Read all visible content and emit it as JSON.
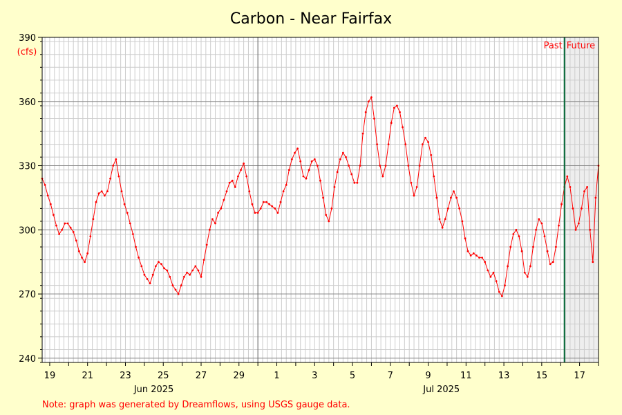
{
  "chart_data": {
    "type": "line",
    "title": "Carbon - Near Fairfax",
    "ylabel": "(cfs)",
    "xlabel": "",
    "ylim": [
      238,
      390
    ],
    "yticks": [
      240,
      270,
      300,
      330,
      360,
      390
    ],
    "xlim_days": [
      18.6,
      48.0
    ],
    "day_ticks": [
      {
        "day": 19,
        "label": "19"
      },
      {
        "day": 21,
        "label": "21"
      },
      {
        "day": 23,
        "label": "23"
      },
      {
        "day": 25,
        "label": "25"
      },
      {
        "day": 27,
        "label": "27"
      },
      {
        "day": 29,
        "label": "29"
      },
      {
        "day": 31,
        "label": "1"
      },
      {
        "day": 33,
        "label": "3"
      },
      {
        "day": 35,
        "label": "5"
      },
      {
        "day": 37,
        "label": "7"
      },
      {
        "day": 39,
        "label": "9"
      },
      {
        "day": 41,
        "label": "11"
      },
      {
        "day": 43,
        "label": "13"
      },
      {
        "day": 45,
        "label": "15"
      },
      {
        "day": 47,
        "label": "17"
      }
    ],
    "month_labels": [
      {
        "day": 24.5,
        "label": "Jun 2025"
      },
      {
        "day": 39.7,
        "label": "Jul 2025"
      }
    ],
    "month_boundary_day": 30.0,
    "now_day": 46.2,
    "past_label": "Past",
    "future_label": "Future",
    "grid": true,
    "line_color": "#ff0000",
    "series": [
      {
        "points": [
          [
            18.6,
            324
          ],
          [
            18.75,
            321
          ],
          [
            18.9,
            316
          ],
          [
            19.05,
            312
          ],
          [
            19.2,
            307
          ],
          [
            19.35,
            302
          ],
          [
            19.5,
            298
          ],
          [
            19.65,
            300
          ],
          [
            19.8,
            303
          ],
          [
            19.95,
            303
          ],
          [
            20.1,
            301
          ],
          [
            20.25,
            299
          ],
          [
            20.4,
            295
          ],
          [
            20.55,
            290
          ],
          [
            20.7,
            287
          ],
          [
            20.85,
            285
          ],
          [
            21.0,
            289
          ],
          [
            21.15,
            297
          ],
          [
            21.3,
            305
          ],
          [
            21.45,
            313
          ],
          [
            21.6,
            317
          ],
          [
            21.75,
            318
          ],
          [
            21.9,
            316
          ],
          [
            22.05,
            318
          ],
          [
            22.2,
            324
          ],
          [
            22.35,
            330
          ],
          [
            22.5,
            333
          ],
          [
            22.65,
            325
          ],
          [
            22.8,
            318
          ],
          [
            22.95,
            312
          ],
          [
            23.1,
            308
          ],
          [
            23.25,
            303
          ],
          [
            23.4,
            298
          ],
          [
            23.55,
            292
          ],
          [
            23.7,
            287
          ],
          [
            23.85,
            283
          ],
          [
            24.0,
            279
          ],
          [
            24.15,
            277
          ],
          [
            24.3,
            275
          ],
          [
            24.45,
            279
          ],
          [
            24.6,
            283
          ],
          [
            24.75,
            285
          ],
          [
            24.9,
            284
          ],
          [
            25.05,
            282
          ],
          [
            25.2,
            281
          ],
          [
            25.35,
            278
          ],
          [
            25.5,
            274
          ],
          [
            25.65,
            272
          ],
          [
            25.8,
            270
          ],
          [
            25.95,
            274
          ],
          [
            26.1,
            278
          ],
          [
            26.25,
            280
          ],
          [
            26.4,
            279
          ],
          [
            26.55,
            281
          ],
          [
            26.7,
            283
          ],
          [
            26.85,
            281
          ],
          [
            27.0,
            278
          ],
          [
            27.15,
            286
          ],
          [
            27.3,
            293
          ],
          [
            27.45,
            300
          ],
          [
            27.6,
            305
          ],
          [
            27.75,
            303
          ],
          [
            27.9,
            308
          ],
          [
            28.05,
            310
          ],
          [
            28.2,
            314
          ],
          [
            28.35,
            318
          ],
          [
            28.5,
            322
          ],
          [
            28.65,
            323
          ],
          [
            28.8,
            320
          ],
          [
            28.95,
            325
          ],
          [
            29.1,
            328
          ],
          [
            29.25,
            331
          ],
          [
            29.4,
            325
          ],
          [
            29.55,
            318
          ],
          [
            29.7,
            312
          ],
          [
            29.85,
            308
          ],
          [
            30.0,
            308
          ],
          [
            30.15,
            310
          ],
          [
            30.3,
            313
          ],
          [
            30.45,
            313
          ],
          [
            30.6,
            312
          ],
          [
            30.75,
            311
          ],
          [
            30.9,
            310
          ],
          [
            31.05,
            308
          ],
          [
            31.2,
            313
          ],
          [
            31.35,
            318
          ],
          [
            31.5,
            321
          ],
          [
            31.65,
            328
          ],
          [
            31.8,
            333
          ],
          [
            31.95,
            336
          ],
          [
            32.1,
            338
          ],
          [
            32.25,
            332
          ],
          [
            32.4,
            325
          ],
          [
            32.55,
            324
          ],
          [
            32.7,
            328
          ],
          [
            32.85,
            332
          ],
          [
            33.0,
            333
          ],
          [
            33.15,
            330
          ],
          [
            33.3,
            323
          ],
          [
            33.45,
            315
          ],
          [
            33.6,
            307
          ],
          [
            33.75,
            304
          ],
          [
            33.9,
            310
          ],
          [
            34.05,
            320
          ],
          [
            34.2,
            327
          ],
          [
            34.35,
            333
          ],
          [
            34.5,
            336
          ],
          [
            34.65,
            334
          ],
          [
            34.8,
            330
          ],
          [
            34.95,
            326
          ],
          [
            35.1,
            322
          ],
          [
            35.25,
            322
          ],
          [
            35.4,
            330
          ],
          [
            35.55,
            345
          ],
          [
            35.7,
            355
          ],
          [
            35.85,
            360
          ],
          [
            36.0,
            362
          ],
          [
            36.15,
            352
          ],
          [
            36.3,
            340
          ],
          [
            36.45,
            330
          ],
          [
            36.6,
            325
          ],
          [
            36.75,
            330
          ],
          [
            36.9,
            340
          ],
          [
            37.05,
            350
          ],
          [
            37.2,
            357
          ],
          [
            37.35,
            358
          ],
          [
            37.5,
            355
          ],
          [
            37.65,
            348
          ],
          [
            37.8,
            340
          ],
          [
            37.95,
            330
          ],
          [
            38.1,
            322
          ],
          [
            38.25,
            316
          ],
          [
            38.4,
            320
          ],
          [
            38.55,
            330
          ],
          [
            38.7,
            340
          ],
          [
            38.85,
            343
          ],
          [
            39.0,
            341
          ],
          [
            39.15,
            335
          ],
          [
            39.3,
            325
          ],
          [
            39.45,
            315
          ],
          [
            39.6,
            305
          ],
          [
            39.75,
            301
          ],
          [
            39.9,
            305
          ],
          [
            40.05,
            310
          ],
          [
            40.2,
            315
          ],
          [
            40.35,
            318
          ],
          [
            40.5,
            315
          ],
          [
            40.65,
            310
          ],
          [
            40.8,
            304
          ],
          [
            40.95,
            296
          ],
          [
            41.1,
            290
          ],
          [
            41.25,
            288
          ],
          [
            41.4,
            289
          ],
          [
            41.55,
            288
          ],
          [
            41.7,
            287
          ],
          [
            41.85,
            287
          ],
          [
            42.0,
            285
          ],
          [
            42.15,
            281
          ],
          [
            42.3,
            278
          ],
          [
            42.45,
            280
          ],
          [
            42.6,
            276
          ],
          [
            42.75,
            271
          ],
          [
            42.9,
            269
          ],
          [
            43.05,
            274
          ],
          [
            43.2,
            283
          ],
          [
            43.35,
            292
          ],
          [
            43.5,
            298
          ],
          [
            43.65,
            300
          ],
          [
            43.8,
            297
          ],
          [
            43.95,
            290
          ],
          [
            44.1,
            280
          ],
          [
            44.25,
            278
          ],
          [
            44.4,
            283
          ],
          [
            44.55,
            292
          ],
          [
            44.7,
            300
          ],
          [
            44.85,
            305
          ],
          [
            45.0,
            303
          ],
          [
            45.15,
            297
          ],
          [
            45.3,
            290
          ],
          [
            45.45,
            284
          ],
          [
            45.6,
            285
          ],
          [
            45.75,
            292
          ],
          [
            45.9,
            302
          ],
          [
            46.05,
            312
          ],
          [
            46.2,
            320
          ],
          [
            46.35,
            325
          ],
          [
            46.5,
            320
          ],
          [
            46.65,
            310
          ],
          [
            46.8,
            300
          ],
          [
            46.95,
            303
          ],
          [
            47.1,
            310
          ],
          [
            47.25,
            318
          ],
          [
            47.4,
            320
          ],
          [
            47.55,
            300
          ],
          [
            47.7,
            285
          ],
          [
            47.85,
            315
          ],
          [
            48.0,
            330
          ]
        ]
      }
    ],
    "note": "Note: graph was generated by Dreamflows, using USGS gauge data."
  }
}
